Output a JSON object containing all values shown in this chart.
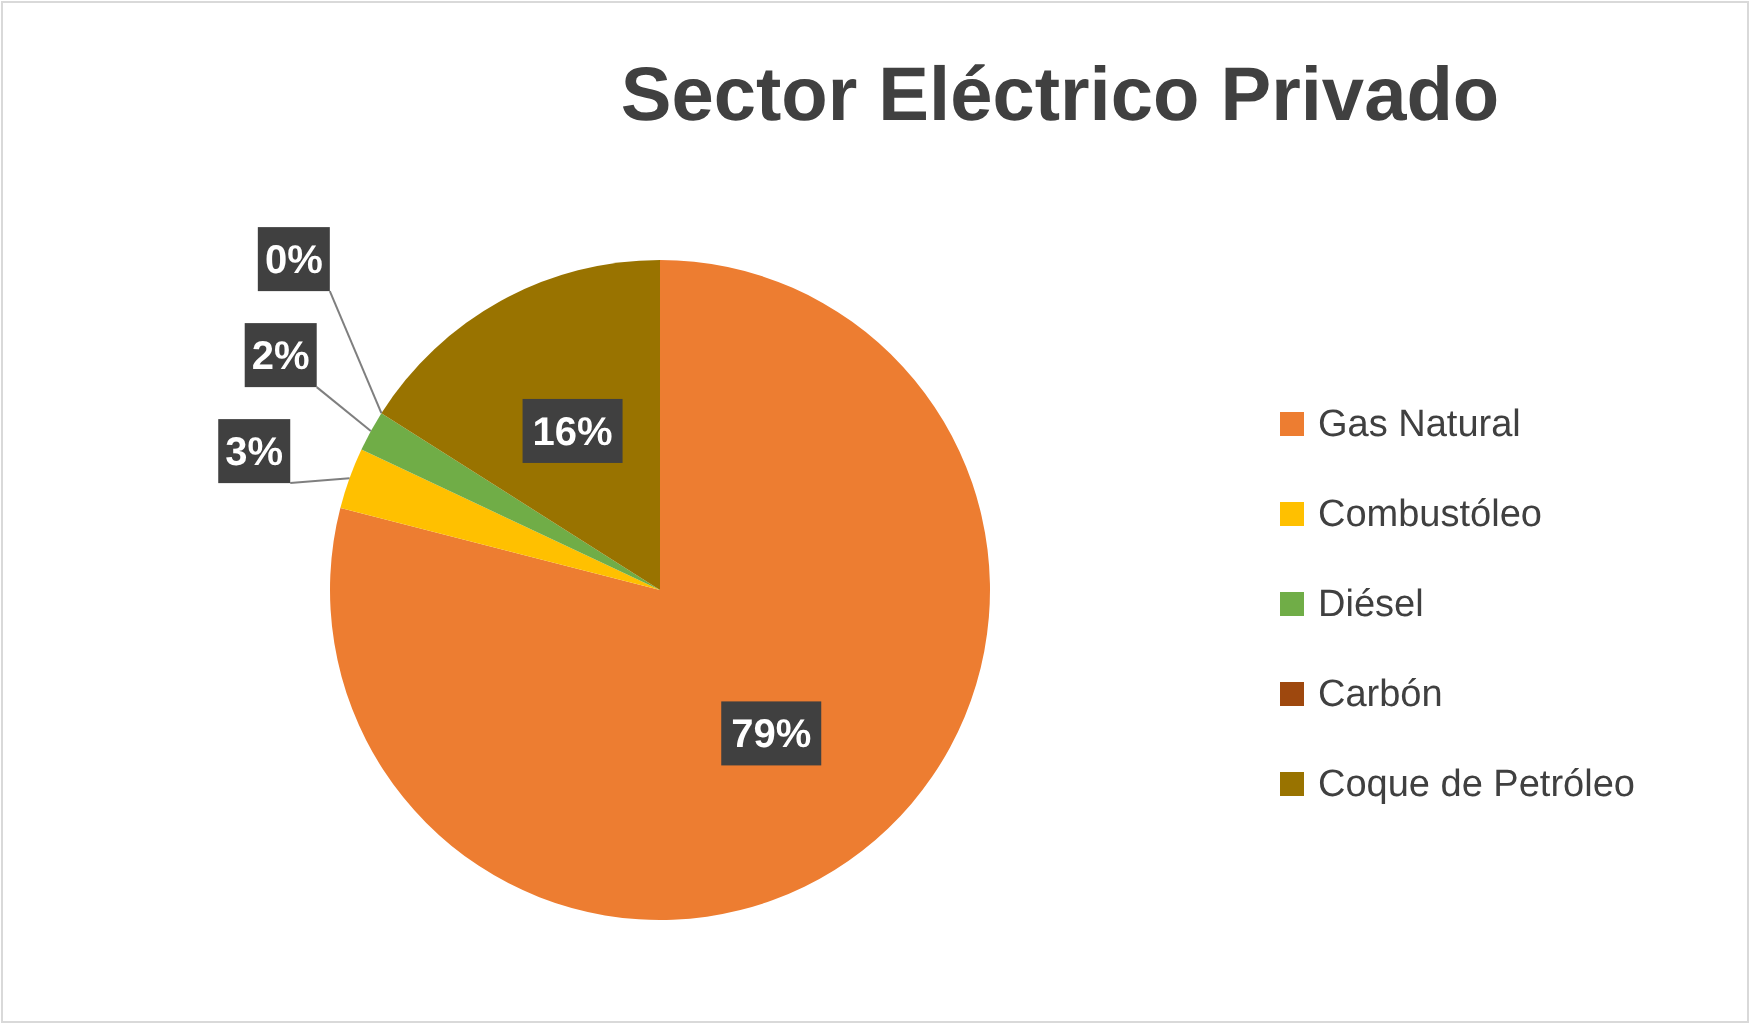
{
  "chart_data": {
    "type": "pie",
    "title": "Sector Eléctrico Privado",
    "categories": [
      "Gas Natural",
      "Combustóleo",
      "Diésel",
      "Carbón",
      "Coque de Petróleo"
    ],
    "values": [
      79,
      3,
      2,
      0,
      16
    ],
    "colors": [
      "#ed7d31",
      "#ffc000",
      "#70ad47",
      "#9e480e",
      "#997300"
    ],
    "value_labels": [
      "79%",
      "3%",
      "2%",
      "0%",
      "16%"
    ],
    "legend": "right"
  }
}
